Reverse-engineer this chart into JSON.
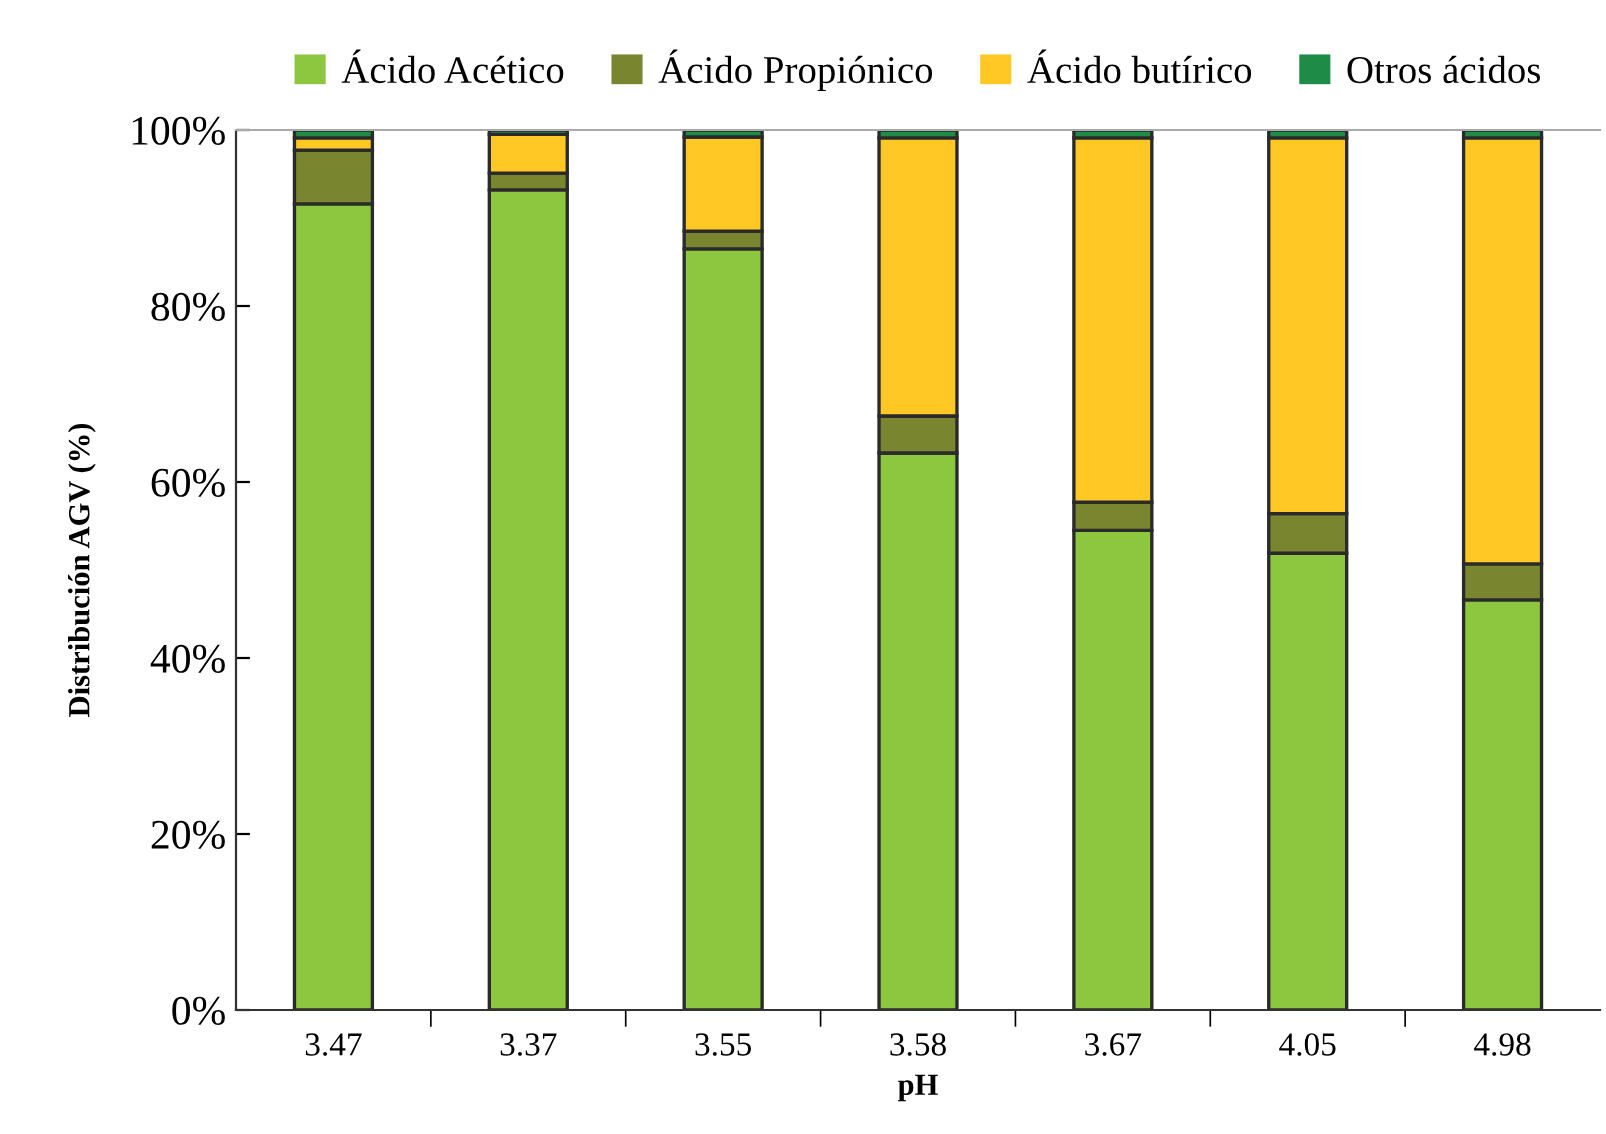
{
  "chart_data": {
    "type": "bar",
    "stacked": true,
    "xlabel": "pH",
    "ylabel": "Distribución AGV (%)",
    "categories": [
      "3.47",
      "3.37",
      "3.55",
      "3.58",
      "3.67",
      "4.05",
      "4.98"
    ],
    "series": [
      {
        "name": "Ácido Acético",
        "color": "#8dc63f",
        "values": [
          91.6,
          93.2,
          86.5,
          63.3,
          54.5,
          51.9,
          46.6
        ]
      },
      {
        "name": "Ácido Propiónico",
        "color": "#7a8530",
        "values": [
          6.1,
          1.9,
          2.0,
          4.2,
          3.2,
          4.5,
          4.1
        ]
      },
      {
        "name": "Ácido butírico",
        "color": "#ffc824",
        "values": [
          1.4,
          4.4,
          10.7,
          31.6,
          41.4,
          42.7,
          48.4
        ]
      },
      {
        "name": "Otros ácidos",
        "color": "#1e8c46",
        "values": [
          0.9,
          0.5,
          0.8,
          0.9,
          0.9,
          0.9,
          0.9
        ]
      }
    ],
    "ylim": [
      0,
      100
    ],
    "yticks": [
      {
        "value": 0,
        "label": "0%"
      },
      {
        "value": 20,
        "label": "20%"
      },
      {
        "value": 40,
        "label": "40%"
      },
      {
        "value": 60,
        "label": "60%"
      },
      {
        "value": 80,
        "label": "80%"
      },
      {
        "value": 100,
        "label": "100%"
      }
    ],
    "grid": false,
    "legend": "top"
  }
}
